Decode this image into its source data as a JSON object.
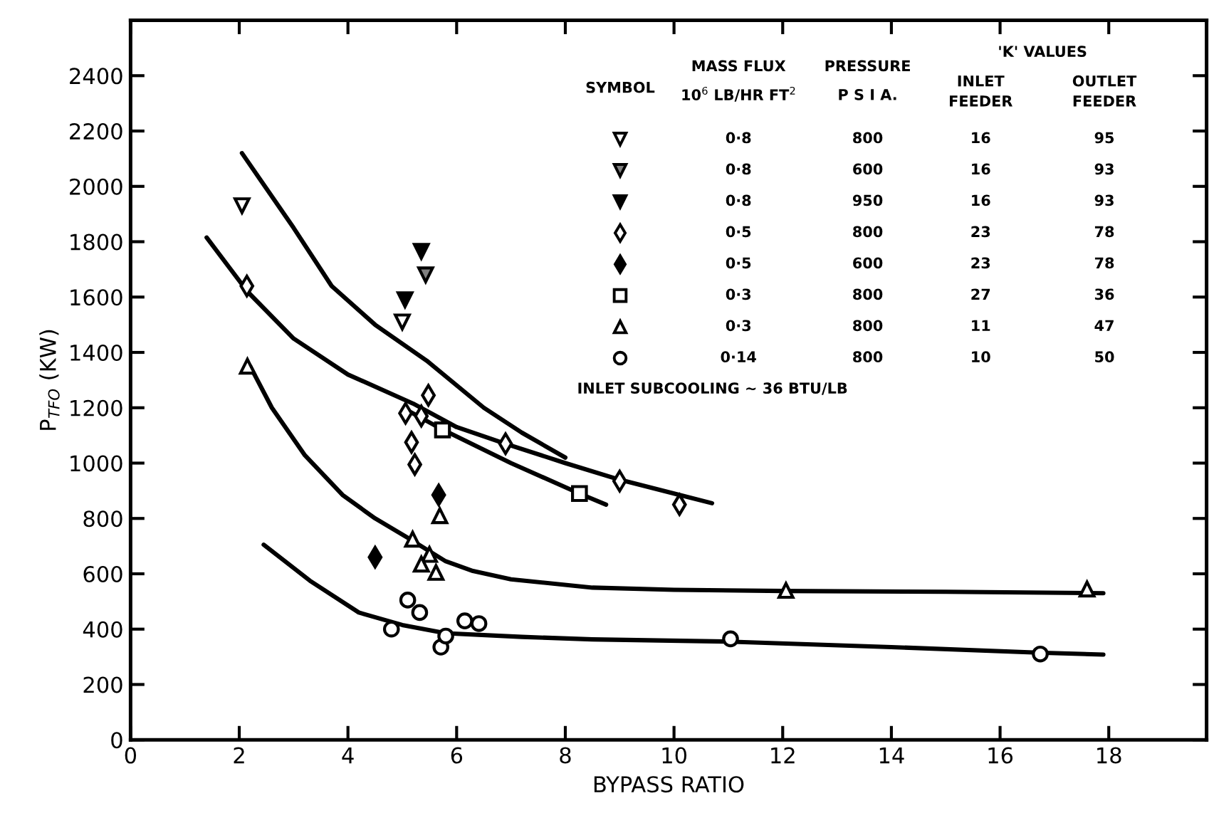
{
  "chart_data": {
    "type": "scatter",
    "xlabel": "BYPASS RATIO",
    "ylabel": "P$_{TFO}$ (KW)",
    "xlim": [
      0,
      19.8
    ],
    "ylim": [
      0,
      2600
    ],
    "xticks": [
      0,
      2,
      4,
      6,
      8,
      10,
      12,
      14,
      16,
      18
    ],
    "yticks": [
      0,
      200,
      400,
      600,
      800,
      1000,
      1200,
      1400,
      1600,
      1800,
      2000,
      2200,
      2400
    ],
    "grid": false,
    "legend": false,
    "series": [
      {
        "marker": "triangle-down",
        "color": "#ffffff",
        "x": [
          2.05,
          5.0
        ],
        "values": [
          1930,
          1510
        ]
      },
      {
        "marker": "triangle-down",
        "color": "#808080",
        "x": [
          5.43
        ],
        "values": [
          1680
        ]
      },
      {
        "marker": "triangle-down",
        "color": "#000000",
        "x": [
          5.05,
          5.35
        ],
        "values": [
          1590,
          1765
        ]
      },
      {
        "marker": "diamond",
        "color": "#ffffff",
        "x": [
          2.14,
          5.48,
          5.06,
          5.35,
          5.17,
          5.23,
          6.9,
          9.0,
          10.1
        ],
        "values": [
          1640,
          1245,
          1180,
          1170,
          1075,
          995,
          1070,
          935,
          850
        ]
      },
      {
        "marker": "diamond",
        "color": "#000000",
        "x": [
          5.67,
          4.5
        ],
        "values": [
          885,
          660
        ]
      },
      {
        "marker": "square",
        "color": "#ffffff",
        "x": [
          5.74,
          8.26
        ],
        "values": [
          1120,
          890
        ]
      },
      {
        "marker": "triangle",
        "color": "#ffffff",
        "x": [
          2.15,
          5.69,
          5.19,
          5.5,
          5.35,
          5.62,
          12.06,
          17.6
        ],
        "values": [
          1350,
          810,
          725,
          670,
          635,
          605,
          540,
          545
        ]
      },
      {
        "marker": "circle",
        "color": "#ffffff",
        "x": [
          4.8,
          5.1,
          5.32,
          5.71,
          5.8,
          6.15,
          6.41,
          11.04,
          16.74
        ],
        "values": [
          400,
          505,
          460,
          335,
          375,
          430,
          420,
          365,
          310
        ]
      },
      {
        "type": "line",
        "marker": "none",
        "color": "#000000",
        "x": [
          2.05,
          3.0,
          3.7,
          4.5,
          5.45,
          6.5,
          7.2,
          8.0
        ],
        "values": [
          2120,
          1850,
          1640,
          1500,
          1370,
          1200,
          1110,
          1020
        ]
      },
      {
        "type": "line",
        "marker": "none",
        "color": "#000000",
        "x": [
          1.4,
          2.15,
          3.0,
          4.0,
          5.2,
          6.0,
          6.9,
          8.0,
          9.0,
          10.0,
          10.7
        ],
        "values": [
          1815,
          1620,
          1450,
          1320,
          1215,
          1130,
          1070,
          1000,
          940,
          890,
          855
        ]
      },
      {
        "type": "line",
        "marker": "none",
        "color": "#000000",
        "x": [
          5.1,
          5.75,
          7.0,
          8.26,
          8.75
        ],
        "values": [
          1190,
          1120,
          1000,
          890,
          850
        ]
      },
      {
        "type": "line",
        "marker": "none",
        "color": "#000000",
        "x": [
          2.2,
          2.6,
          3.2,
          3.9,
          4.5,
          5.1,
          5.8,
          6.3,
          7.0,
          8.5,
          10.0,
          12.0,
          15.0,
          17.9
        ],
        "values": [
          1350,
          1200,
          1030,
          885,
          800,
          730,
          645,
          610,
          580,
          550,
          542,
          538,
          535,
          530
        ]
      },
      {
        "type": "line",
        "marker": "none",
        "color": "#000000",
        "x": [
          2.45,
          3.3,
          4.2,
          5.0,
          5.8,
          7.2,
          8.5,
          11.0,
          14.0,
          16.7,
          17.9
        ],
        "values": [
          705,
          575,
          460,
          415,
          385,
          372,
          363,
          355,
          335,
          315,
          308
        ]
      }
    ],
    "annotations": [
      "SYMBOL",
      "MASS FLUX",
      "10$^{6}$ LB/HR FT$^{2}$",
      "PRESSURE",
      "P S I A.",
      "'K' VALUES",
      "INLET\nFEEDER",
      "OUTLET\nFEEDER",
      "0·8",
      "800",
      "16",
      "95",
      "0·8",
      "600",
      "16",
      "93",
      "0·8",
      "950",
      "16",
      "93",
      "0·5",
      "800",
      "23",
      "78",
      "0·5",
      "600",
      "23",
      "78",
      "0·3",
      "800",
      "27",
      "36",
      "0·3",
      "800",
      "11",
      "47",
      "0·14",
      "800",
      "10",
      "50",
      "INLET SUBCOOLING ~ 36 BTU/LB"
    ]
  }
}
